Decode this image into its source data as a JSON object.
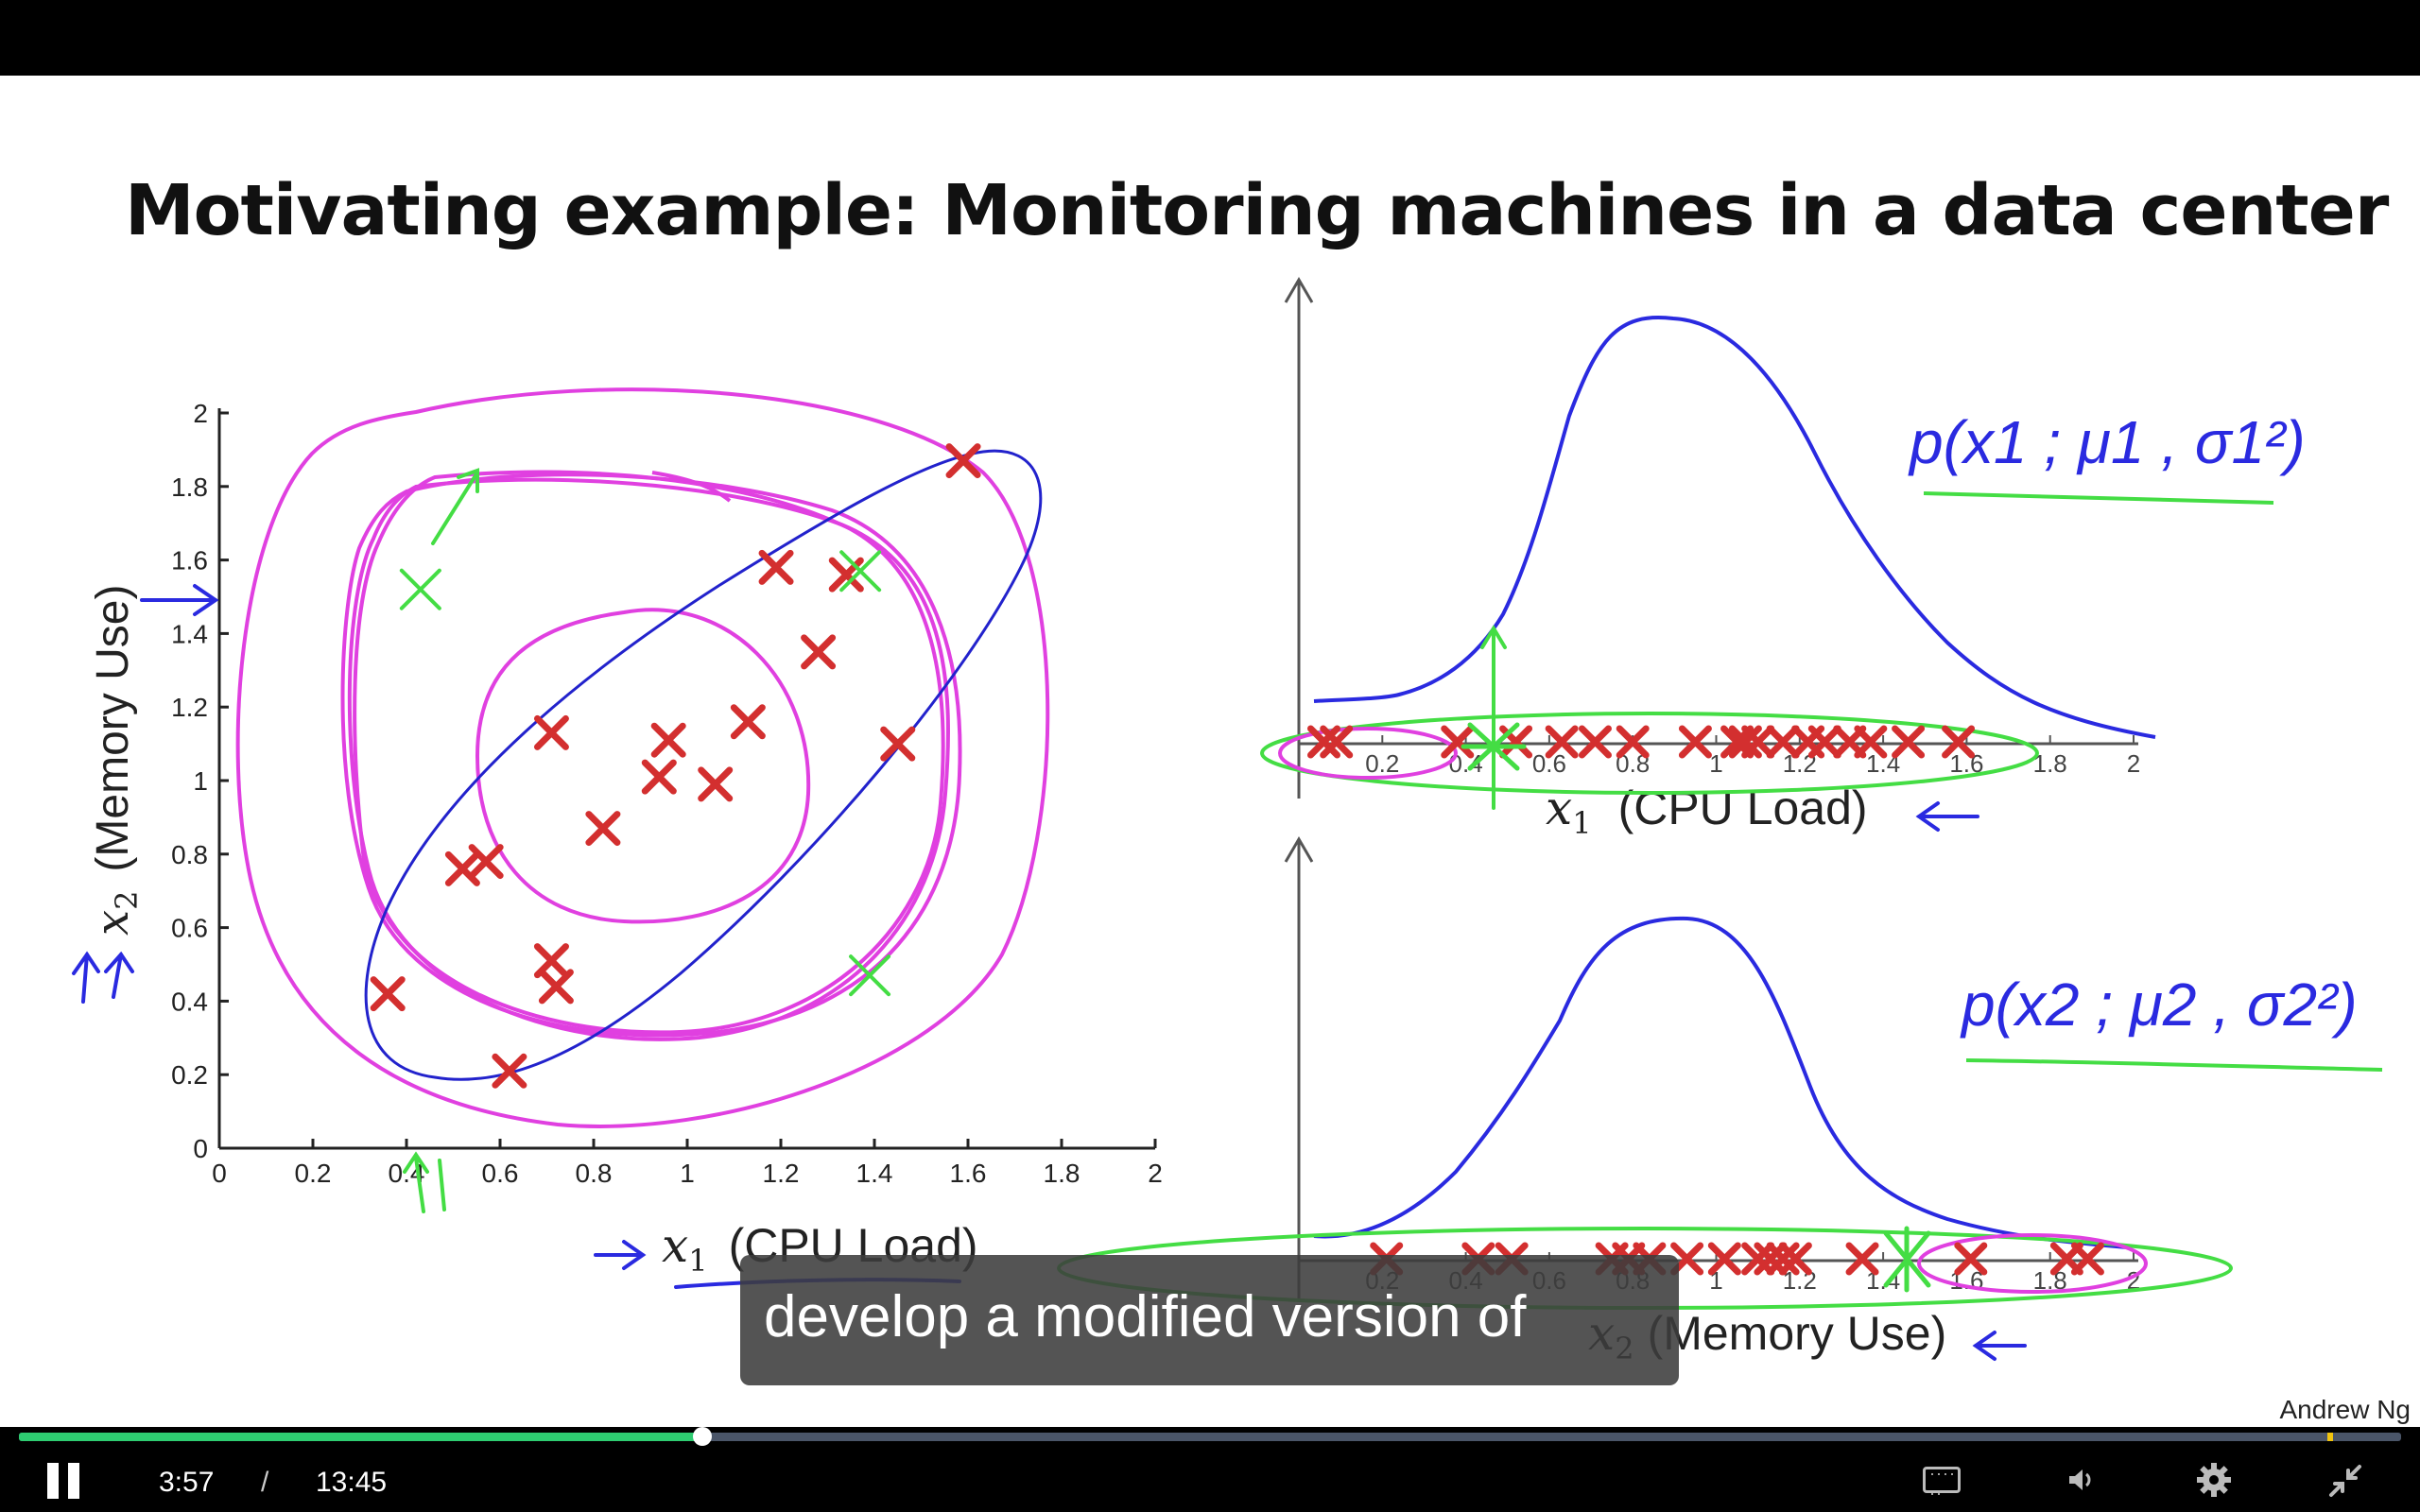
{
  "slide": {
    "title": "Motivating example: Monitoring machines in a data center",
    "credit": "Andrew Ng"
  },
  "chart_data": [
    {
      "type": "scatter",
      "title": "",
      "xlabel_var": "x",
      "xlabel_sub": "1",
      "xlabel_text": "(CPU Load)",
      "ylabel_var": "x",
      "ylabel_sub": "2",
      "ylabel_text": "(Memory Use)",
      "xlim": [
        0,
        2
      ],
      "ylim": [
        0,
        2
      ],
      "x_ticks": [
        "0",
        "0.2",
        "0.4",
        "0.6",
        "0.8",
        "1",
        "1.2",
        "1.4",
        "1.6",
        "1.8",
        "2"
      ],
      "y_ticks": [
        "0",
        "0.2",
        "0.4",
        "0.6",
        "0.8",
        "1",
        "1.2",
        "1.4",
        "1.6",
        "1.8",
        "2"
      ],
      "series": [
        {
          "color": "#d32f2f",
          "points": [
            [
              0.36,
              0.42
            ],
            [
              0.52,
              0.76
            ],
            [
              0.57,
              0.78
            ],
            [
              0.62,
              0.21
            ],
            [
              0.71,
              1.13
            ],
            [
              0.71,
              0.51
            ],
            [
              0.72,
              0.44
            ],
            [
              0.82,
              0.87
            ],
            [
              0.94,
              1.01
            ],
            [
              0.96,
              1.11
            ],
            [
              1.06,
              0.99
            ],
            [
              1.13,
              1.16
            ],
            [
              1.19,
              1.58
            ],
            [
              1.28,
              1.35
            ],
            [
              1.34,
              1.56
            ],
            [
              1.45,
              1.1
            ],
            [
              1.59,
              1.87
            ]
          ]
        },
        {
          "color": "#44dd44",
          "points": [
            [
              0.43,
              1.52
            ],
            [
              1.39,
              0.47
            ],
            [
              1.37,
              1.57
            ]
          ]
        }
      ]
    },
    {
      "type": "scatter",
      "title": "",
      "xlabel_var": "x",
      "xlabel_sub": "1",
      "xlabel_text": "(CPU Load)",
      "ylabel": "",
      "xlim": [
        0,
        2
      ],
      "x_ticks": [
        "0.2",
        "0.4",
        "0.6",
        "0.8",
        "1",
        "1.2",
        "1.4",
        "1.6",
        "1.8",
        "2"
      ],
      "annotation": "p(x1 ; μ1 , σ1²)",
      "points_x": [
        0.06,
        0.09,
        0.38,
        0.52,
        0.63,
        0.71,
        0.8,
        0.95,
        1.05,
        1.07,
        1.1,
        1.16,
        1.22,
        1.26,
        1.32,
        1.37,
        1.46,
        1.58
      ]
    },
    {
      "type": "scatter",
      "title": "",
      "xlabel_var": "x",
      "xlabel_sub": "2",
      "xlabel_text": "(Memory Use)",
      "ylabel": "",
      "xlim": [
        0,
        2
      ],
      "x_ticks": [
        "0.2",
        "0.4",
        "0.6",
        "0.8",
        "1",
        "1.2",
        "1.4",
        "1.6",
        "1.8",
        "2"
      ],
      "annotation": "p(x2 ; μ2 , σ2²)",
      "points_x": [
        0.21,
        0.43,
        0.51,
        0.75,
        0.79,
        0.84,
        0.93,
        1.02,
        1.1,
        1.13,
        1.16,
        1.19,
        1.35,
        1.61,
        1.84,
        1.89
      ]
    }
  ],
  "caption": "develop a modified version of",
  "player": {
    "current_time": "3:57",
    "separator": "/",
    "total_time": "13:45",
    "progress": 0.287
  }
}
